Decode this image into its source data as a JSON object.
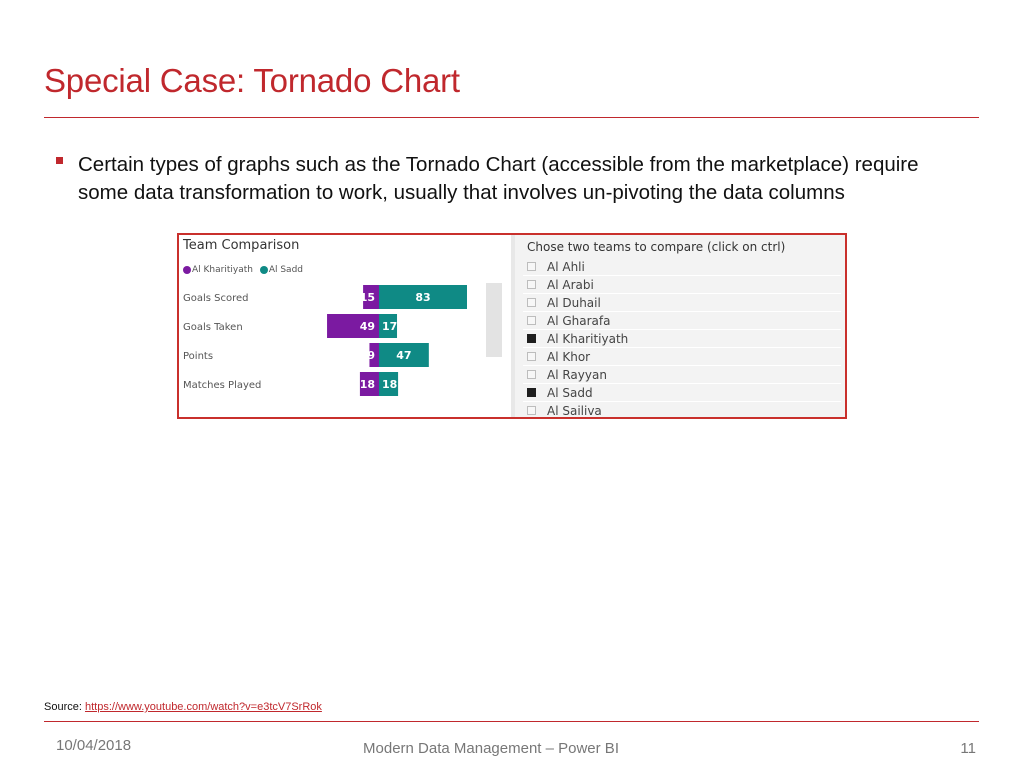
{
  "slide": {
    "title": "Special Case: Tornado Chart",
    "bullet": "Certain types of graphs such as the Tornado Chart (accessible from the marketplace) require some data transformation to work, usually that involves un-pivoting the data columns"
  },
  "chart_data": {
    "type": "bar",
    "title": "Team Comparison",
    "categories": [
      "Goals Scored",
      "Goals Taken",
      "Points",
      "Matches Played"
    ],
    "series": [
      {
        "name": "Al Kharitiyath",
        "values": [
          15,
          49,
          9,
          18
        ],
        "color": "#7b1aa1"
      },
      {
        "name": "Al Sadd",
        "values": [
          83,
          17,
          47,
          18
        ],
        "color": "#0f8a85"
      }
    ],
    "orientation": "diverging-horizontal",
    "legend": "top-left"
  },
  "slicer": {
    "title": "Chose two teams to compare (click on ctrl)",
    "items": [
      {
        "label": "Al Ahli",
        "checked": false
      },
      {
        "label": "Al Arabi",
        "checked": false
      },
      {
        "label": "Al Duhail",
        "checked": false
      },
      {
        "label": "Al Gharafa",
        "checked": false
      },
      {
        "label": "Al Kharitiyath",
        "checked": true
      },
      {
        "label": "Al Khor",
        "checked": false
      },
      {
        "label": "Al Rayyan",
        "checked": false
      },
      {
        "label": "Al Sadd",
        "checked": true
      },
      {
        "label": "Al Sailiva",
        "checked": false
      }
    ]
  },
  "footer": {
    "source_label": "Source:",
    "source_link": "https://www.youtube.com/watch?v=e3tcV7SrRok",
    "date": "10/04/2018",
    "center": "Modern Data Management – Power BI",
    "page": "11"
  },
  "colors": {
    "accent": "#c0282d",
    "series_left": "#7b1aa1",
    "series_right": "#0f8a85"
  }
}
